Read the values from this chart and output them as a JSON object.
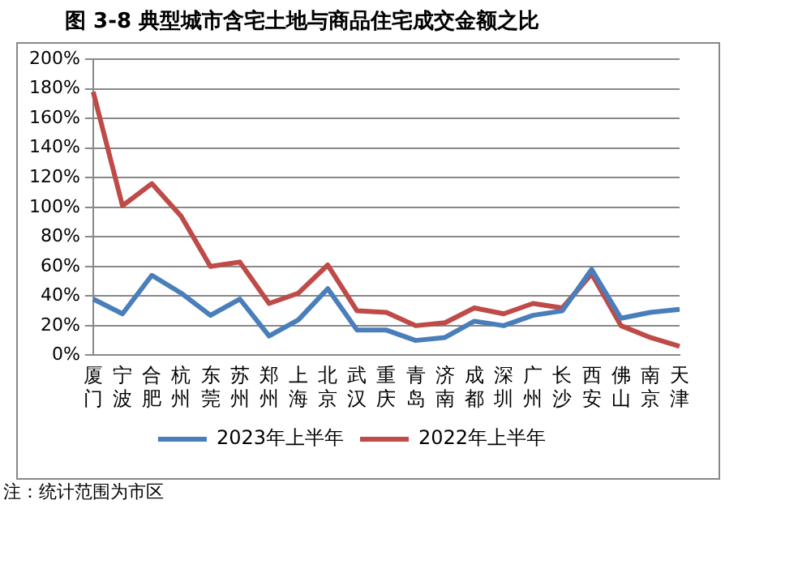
{
  "chart_data": {
    "type": "line",
    "title": "图 3-8  典型城市含宅土地与商品住宅成交金额之比",
    "categories": [
      "厦门",
      "宁波",
      "合肥",
      "杭州",
      "东莞",
      "苏州",
      "郑州",
      "上海",
      "北京",
      "武汉",
      "重庆",
      "青岛",
      "济南",
      "成都",
      "深圳",
      "广州",
      "长沙",
      "西安",
      "佛山",
      "南京",
      "天津"
    ],
    "series": [
      {
        "name": "2023年上半年",
        "color": "#4a7ebb",
        "values": [
          38,
          28,
          54,
          42,
          27,
          38,
          13,
          24,
          45,
          17,
          17,
          10,
          12,
          23,
          20,
          27,
          30,
          58,
          25,
          29,
          31
        ]
      },
      {
        "name": "2022年上半年",
        "color": "#be4b48",
        "values": [
          178,
          101,
          116,
          94,
          60,
          63,
          35,
          42,
          61,
          30,
          29,
          20,
          22,
          32,
          28,
          35,
          32,
          55,
          20,
          12,
          6
        ]
      }
    ],
    "ylim": [
      0,
      200
    ],
    "yticks": [
      {
        "value": 0,
        "label": "0%"
      },
      {
        "value": 20,
        "label": "20%"
      },
      {
        "value": 40,
        "label": "40%"
      },
      {
        "value": 60,
        "label": "60%"
      },
      {
        "value": 80,
        "label": "80%"
      },
      {
        "value": 100,
        "label": "100%"
      },
      {
        "value": 120,
        "label": "120%"
      },
      {
        "value": 140,
        "label": "140%"
      },
      {
        "value": 160,
        "label": "160%"
      },
      {
        "value": 180,
        "label": "180%"
      },
      {
        "value": 200,
        "label": "200%"
      }
    ],
    "grid": "y",
    "legend": "bottom",
    "marker": "none",
    "line_style": "solid",
    "annotations": [
      "注：统计范围为市区"
    ]
  }
}
